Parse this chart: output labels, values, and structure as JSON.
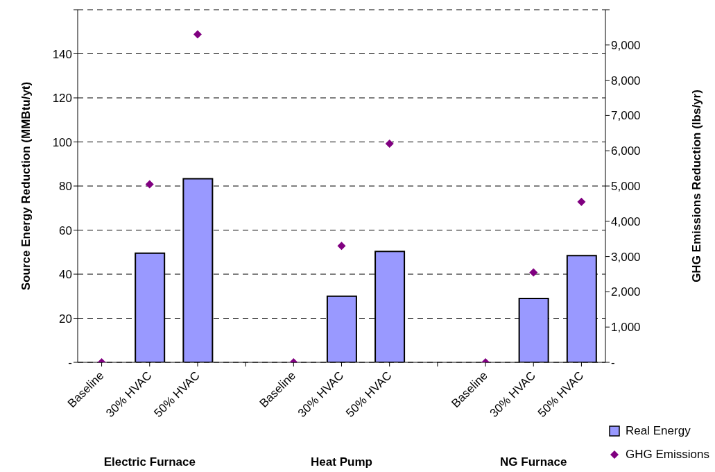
{
  "chart_data": {
    "type": "bar",
    "categories": [
      "Baseline",
      "30% HVAC",
      "50% HVAC",
      null,
      "Baseline",
      "30% HVAC",
      "50% HVAC",
      null,
      "Baseline",
      "30% HVAC",
      "50% HVAC"
    ],
    "series": [
      {
        "name": "Real Energy",
        "color": "#9999ff",
        "values": [
          0,
          49.5,
          83.3,
          null,
          0,
          30,
          50.3,
          null,
          0,
          29,
          48.4
        ]
      },
      {
        "name": "GHG Emissions",
        "type": "scatter",
        "axis": "y2",
        "color": "#800080",
        "values": [
          0,
          5050,
          9300,
          null,
          0,
          3300,
          6200,
          null,
          0,
          2550,
          4550
        ]
      }
    ],
    "ylabel": "Source Energy Reduction (MMBtu/yt)",
    "y2label": "GHG Emissions Reduction (lbs/yr)",
    "ylim": [
      0,
      160
    ],
    "yticks": [
      {
        "value": 0,
        "label": "-"
      },
      20,
      40,
      60,
      80,
      100,
      120,
      140,
      {
        "value": 160,
        "label": null
      }
    ],
    "y2lim": [
      0,
      10000
    ],
    "y2ticks": [
      {
        "value": 0,
        "label": "-"
      },
      {
        "value": 1000,
        "label": "1,000"
      },
      {
        "value": 2000,
        "label": "2,000"
      },
      {
        "value": 3000,
        "label": "3,000"
      },
      {
        "value": 4000,
        "label": "4,000"
      },
      {
        "value": 5000,
        "label": "5,000"
      },
      {
        "value": 6000,
        "label": "6,000"
      },
      {
        "value": 7000,
        "label": "7,000"
      },
      {
        "value": 8000,
        "label": "8,000"
      },
      {
        "value": 9000,
        "label": "9,000"
      },
      {
        "value": 10000,
        "label": null
      }
    ],
    "annotations": [
      "Electric Furnace",
      "Heat Pump",
      "NG Furnace"
    ],
    "grid": "y",
    "legend": "bottom right",
    "marker": "diamond"
  }
}
